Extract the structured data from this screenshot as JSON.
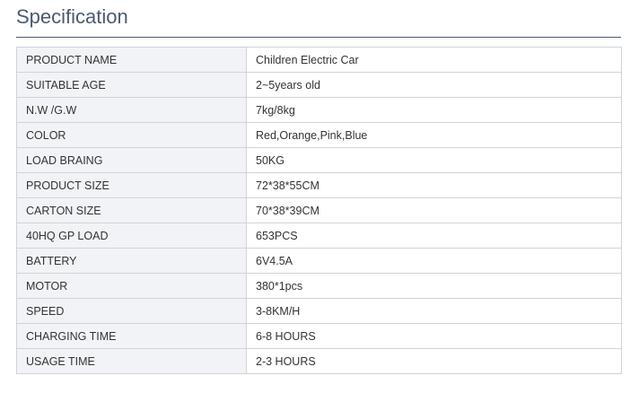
{
  "title": "Specification",
  "rows": [
    {
      "label": "PRODUCT NAME",
      "value": "Children Electric Car"
    },
    {
      "label": "SUITABLE AGE",
      "value": "2~5years old"
    },
    {
      "label": "N.W /G.W",
      "value": "7kg/8kg"
    },
    {
      "label": "COLOR",
      "value": "Red,Orange,Pink,Blue"
    },
    {
      "label": "LOAD BRAING",
      "value": "50KG"
    },
    {
      "label": "PRODUCT SIZE",
      "value": "72*38*55CM"
    },
    {
      "label": "CARTON SIZE",
      "value": "70*38*39CM"
    },
    {
      "label": "40HQ GP LOAD",
      "value": "653PCS"
    },
    {
      "label": "BATTERY",
      "value": "6V4.5A"
    },
    {
      "label": "MOTOR",
      "value": "380*1pcs"
    },
    {
      "label": "SPEED",
      "value": "3-8KM/H"
    },
    {
      "label": "CHARGING TIME",
      "value": "6-8 HOURS"
    },
    {
      "label": "USAGE TIME",
      "value": "2-3 HOURS"
    }
  ]
}
